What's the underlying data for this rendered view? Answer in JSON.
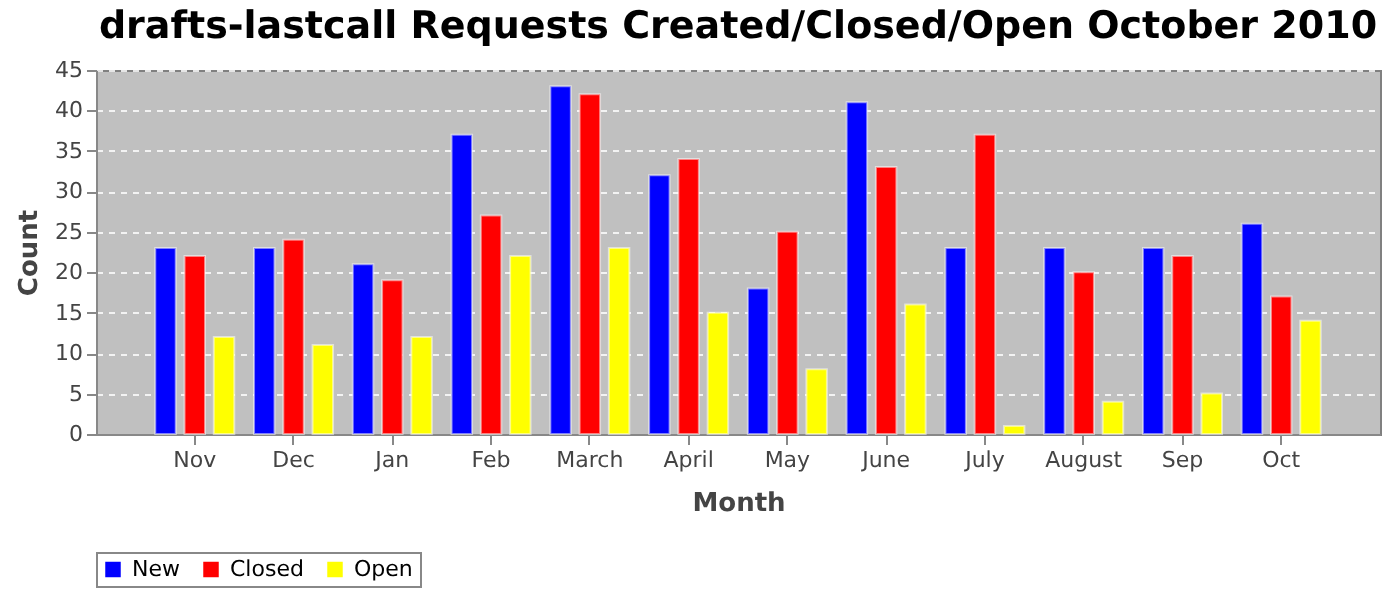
{
  "chart_data": {
    "type": "bar",
    "title": "drafts-lastcall Requests Created/Closed/Open October 2010",
    "xlabel": "Month",
    "ylabel": "Count",
    "categories": [
      "Nov",
      "Dec",
      "Jan",
      "Feb",
      "March",
      "April",
      "May",
      "June",
      "July",
      "August",
      "Sep",
      "Oct"
    ],
    "series": [
      {
        "name": "New",
        "color": "#0000ff",
        "values": [
          23,
          23,
          21,
          37,
          43,
          32,
          18,
          41,
          23,
          23,
          23,
          26
        ]
      },
      {
        "name": "Closed",
        "color": "#ff0000",
        "values": [
          22,
          24,
          19,
          27,
          42,
          34,
          25,
          33,
          37,
          20,
          22,
          17
        ]
      },
      {
        "name": "Open",
        "color": "#ffff00",
        "values": [
          12,
          11,
          12,
          22,
          23,
          15,
          8,
          16,
          1,
          4,
          5,
          14
        ]
      }
    ],
    "ylim": [
      0,
      45
    ],
    "yticks": [
      0,
      5,
      10,
      15,
      20,
      25,
      30,
      35,
      40,
      45
    ],
    "grid": "y",
    "legend": "bottom"
  }
}
